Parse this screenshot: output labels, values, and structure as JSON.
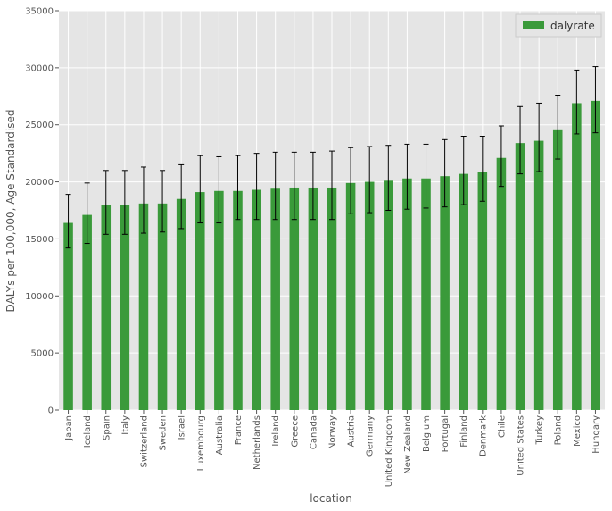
{
  "colors": {
    "bar": "#3a9a3a",
    "error_bar": "#000000",
    "plot_background": "#e5e5e5",
    "grid": "#ffffff"
  },
  "chart_data": {
    "type": "bar",
    "xlabel": "location",
    "ylabel": "DALYs per 100,000, Age Standardised",
    "ylim": [
      0,
      35000
    ],
    "yticks": [
      0,
      5000,
      10000,
      15000,
      20000,
      25000,
      30000,
      35000
    ],
    "grid": true,
    "legend": {
      "placement": "top-right",
      "entries": [
        "dalyrate"
      ]
    },
    "categories": [
      "Japan",
      "Iceland",
      "Spain",
      "Italy",
      "Switzerland",
      "Sweden",
      "Israel",
      "Luxembourg",
      "Australia",
      "France",
      "Netherlands",
      "Ireland",
      "Greece",
      "Canada",
      "Norway",
      "Austria",
      "Germany",
      "United Kingdom",
      "New Zealand",
      "Belgium",
      "Portugal",
      "Finland",
      "Denmark",
      "Chile",
      "United States",
      "Turkey",
      "Poland",
      "Mexico",
      "Hungary"
    ],
    "series": [
      {
        "name": "dalyrate",
        "values": [
          16400,
          17100,
          18000,
          18000,
          18100,
          18100,
          18500,
          19100,
          19200,
          19200,
          19300,
          19400,
          19500,
          19500,
          19500,
          19900,
          20000,
          20100,
          20300,
          20300,
          20500,
          20700,
          20900,
          22100,
          23400,
          23600,
          24600,
          26900,
          27100
        ],
        "error_low": [
          14200,
          14600,
          15400,
          15400,
          15500,
          15600,
          15900,
          16400,
          16400,
          16700,
          16700,
          16700,
          16700,
          16700,
          16700,
          17200,
          17300,
          17500,
          17600,
          17700,
          17800,
          18000,
          18300,
          19600,
          20700,
          20900,
          22000,
          24200,
          24300
        ],
        "error_high": [
          18900,
          19900,
          21000,
          21000,
          21300,
          21000,
          21500,
          22300,
          22200,
          22300,
          22500,
          22600,
          22600,
          22600,
          22700,
          23000,
          23100,
          23200,
          23300,
          23300,
          23700,
          24000,
          24000,
          24900,
          26600,
          26900,
          27600,
          29800,
          30100
        ]
      }
    ]
  }
}
